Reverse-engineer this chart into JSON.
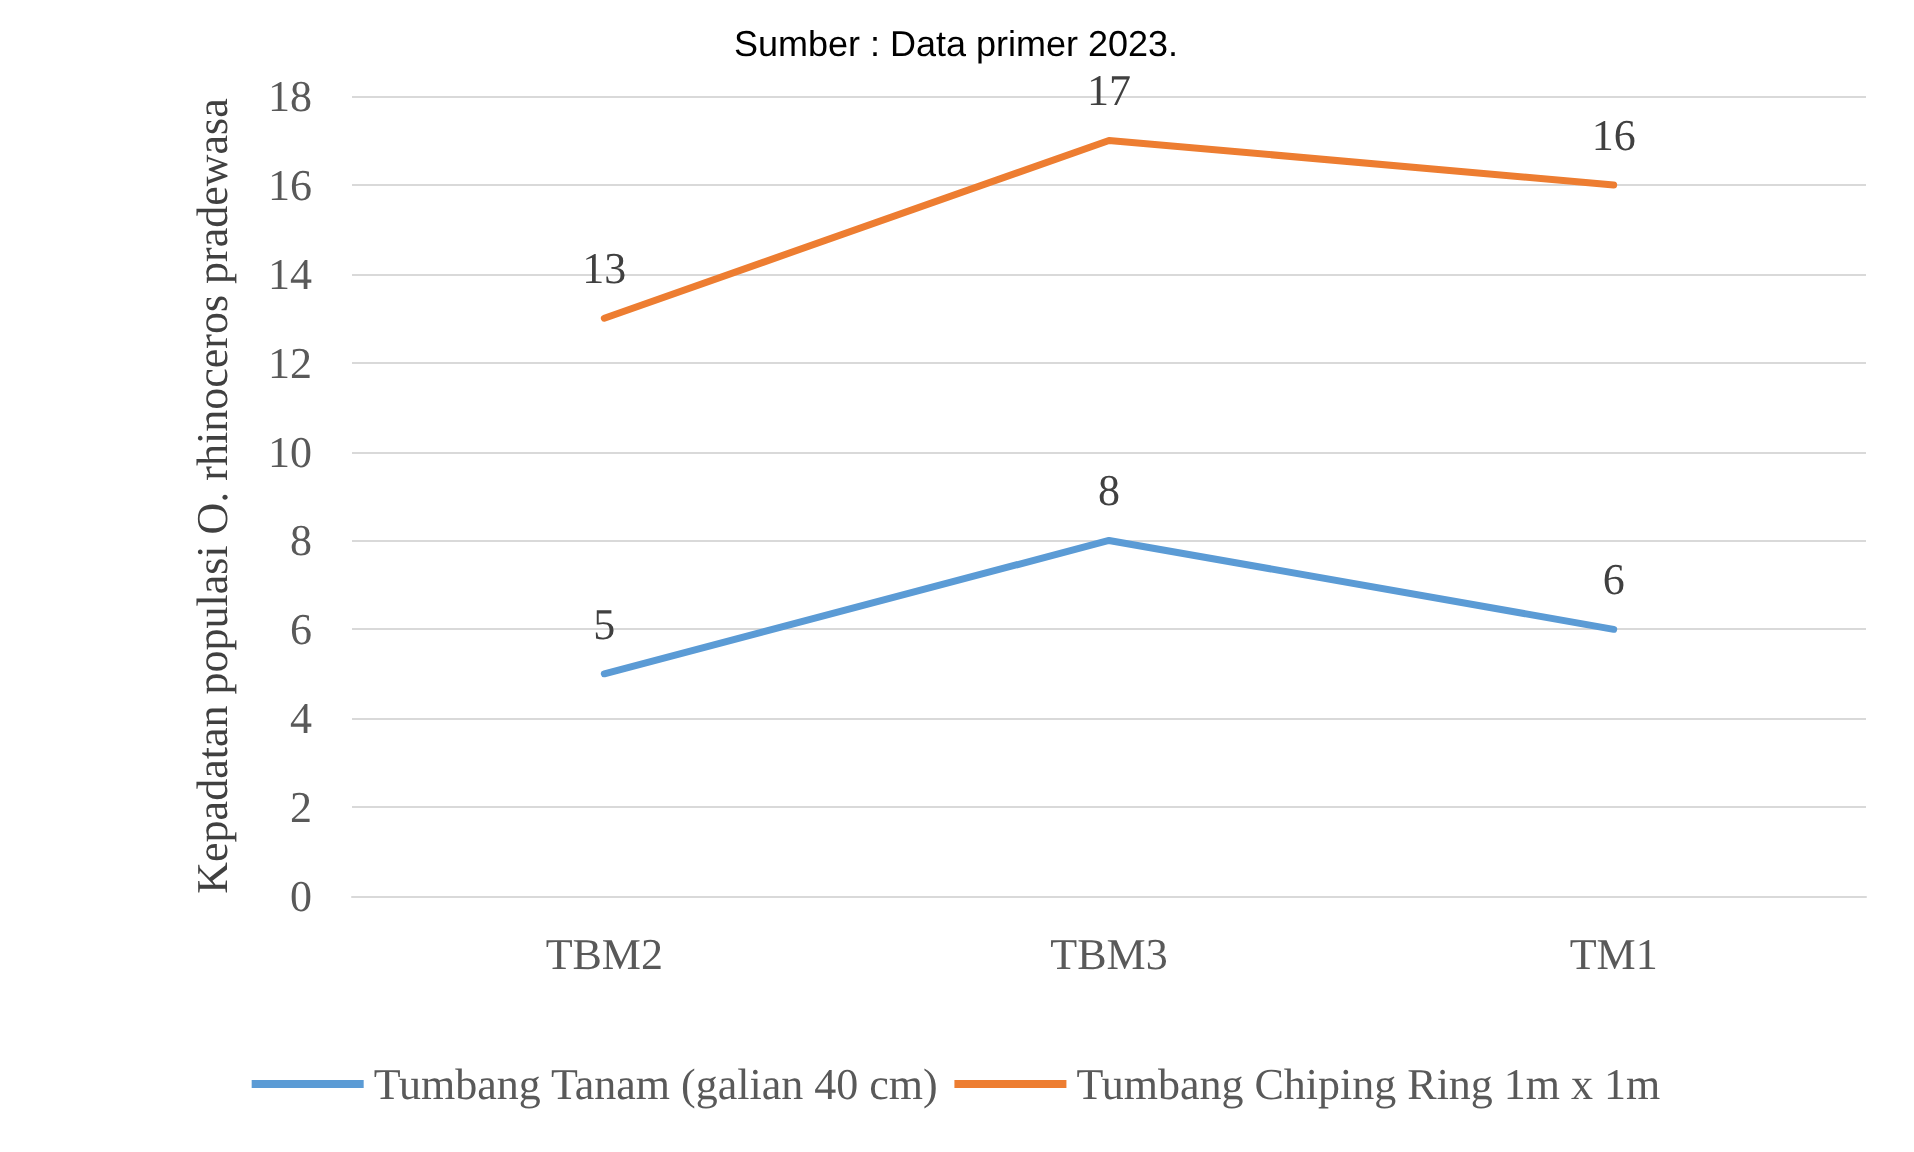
{
  "chart_data": {
    "type": "line",
    "annotations": [
      "Sumber : Data primer 2023."
    ],
    "ylabel": "Kepadatan populasi O. rhinoceros pradewasa",
    "categories": [
      "TBM2",
      "TBM3",
      "TM1"
    ],
    "series": [
      {
        "name": "Tumbang Tanam (galian 40 cm)",
        "color": "#5b9bd5",
        "values": [
          5,
          8,
          6
        ]
      },
      {
        "name": "Tumbang Chiping Ring 1m x 1m",
        "color": "#ed7d31",
        "values": [
          13,
          17,
          16
        ]
      }
    ],
    "ylim": [
      0,
      18
    ],
    "yticks": [
      0,
      2,
      4,
      6,
      8,
      10,
      12,
      14,
      16,
      18
    ],
    "grid": "y",
    "legend": "bottom",
    "data_labels": true,
    "marker": "none",
    "line_style": "solid"
  }
}
